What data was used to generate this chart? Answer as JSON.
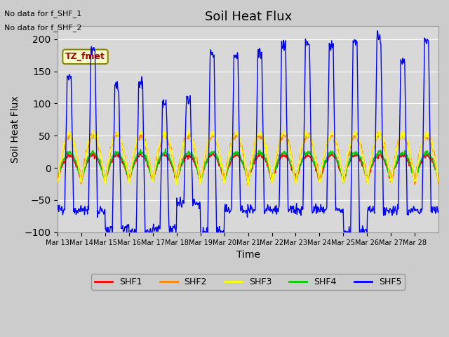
{
  "title": "Soil Heat Flux",
  "ylabel": "Soil Heat Flux",
  "xlabel": "Time",
  "text_no_data_1": "No data for f_SHF_1",
  "text_no_data_2": "No data for f_SHF_2",
  "tz_label": "TZ_fmet",
  "ylim": [
    -100,
    220
  ],
  "yticks": [
    -100,
    -50,
    0,
    50,
    100,
    150,
    200
  ],
  "background_color": "#cccccc",
  "plot_bg_color": "#d8d8d8",
  "legend_entries": [
    "SHF1",
    "SHF2",
    "SHF3",
    "SHF4",
    "SHF5"
  ],
  "legend_colors": [
    "#ff0000",
    "#ff8800",
    "#ffff00",
    "#00cc00",
    "#0000ff"
  ],
  "x_tick_labels": [
    "Mar 13",
    "Mar 14",
    "Mar 15",
    "Mar 16",
    "Mar 17",
    "Mar 18",
    "Mar 19",
    "Mar 20",
    "Mar 21",
    "Mar 22",
    "Mar 23",
    "Mar 24",
    "Mar 25",
    "Mar 26",
    "Mar 27",
    "Mar 28"
  ],
  "n_days": 16,
  "shf5_peaks": [
    140,
    185,
    125,
    130,
    100,
    105,
    175,
    170,
    180,
    190,
    195,
    190,
    195,
    200,
    165,
    200
  ],
  "shf5_troughs": [
    -65,
    -65,
    -95,
    -100,
    -95,
    -55,
    -100,
    -65,
    -65,
    -65,
    -65,
    -65,
    -100,
    -65,
    -65,
    -65
  ]
}
